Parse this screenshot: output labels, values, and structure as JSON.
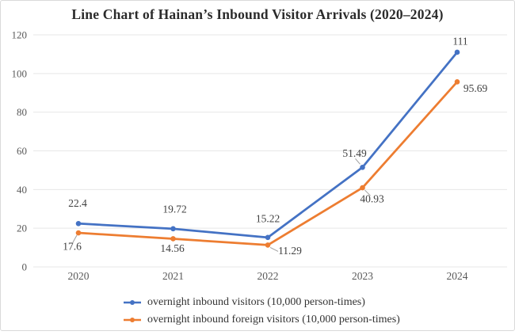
{
  "chart_data": {
    "type": "line",
    "title": "Line Chart of Hainan’s Inbound Visitor Arrivals (2020–2024)",
    "categories": [
      "2020",
      "2021",
      "2022",
      "2023",
      "2024"
    ],
    "series": [
      {
        "name": "overnight inbound visitors (10,000 person-times)",
        "color": "#4472C4",
        "values": [
          22.4,
          19.72,
          15.22,
          51.49,
          111
        ],
        "labels": [
          "22.4",
          "19.72",
          "15.22",
          "51.49",
          "111"
        ]
      },
      {
        "name": "overnight inbound foreign visitors (10,000 person-times)",
        "color": "#ED7D31",
        "values": [
          17.6,
          14.56,
          11.29,
          40.93,
          95.69
        ],
        "labels": [
          "17.6",
          "14.56",
          "11.29",
          "40.93",
          "95.69"
        ]
      }
    ],
    "y_axis": {
      "min": 0,
      "max": 120,
      "step": 20,
      "ticks": [
        "0",
        "20",
        "40",
        "60",
        "80",
        "100",
        "120"
      ]
    },
    "grid": true,
    "data_labels": true,
    "legend_position": "bottom"
  },
  "colors": {
    "grid_line": "#e7e7e7",
    "tick_text": "#595959",
    "label_text": "#404040",
    "leader_line": "#9e9e9e",
    "card_border": "#d9d9d9"
  }
}
